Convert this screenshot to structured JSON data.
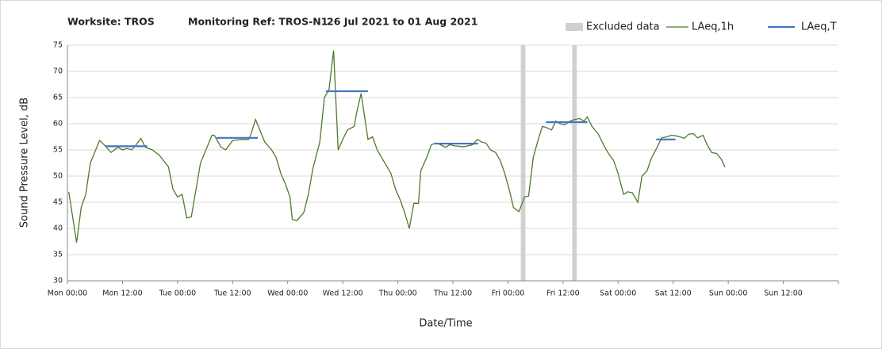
{
  "chart_data": {
    "type": "line",
    "title_parts": [
      "Worksite: TROS",
      "Monitoring Ref: TROS-N1",
      "26 Jul 2021 to 01 Aug 2021"
    ],
    "xlabel": "Date/Time",
    "ylabel": "Sound Pressure Level, dB",
    "xlim": [
      0,
      168
    ],
    "ylim": [
      30,
      75
    ],
    "yticks": [
      30,
      35,
      40,
      45,
      50,
      55,
      60,
      65,
      70,
      75
    ],
    "xticks": [
      {
        "value": 0,
        "label": "Mon 00:00"
      },
      {
        "value": 12,
        "label": "Mon 12:00"
      },
      {
        "value": 24,
        "label": "Tue 00:00"
      },
      {
        "value": 36,
        "label": "Tue 12:00"
      },
      {
        "value": 48,
        "label": "Wed 00:00"
      },
      {
        "value": 60,
        "label": "Wed 12:00"
      },
      {
        "value": 72,
        "label": "Thu 00:00"
      },
      {
        "value": 84,
        "label": "Thu 12:00"
      },
      {
        "value": 96,
        "label": "Fri 00:00"
      },
      {
        "value": 108,
        "label": "Fri 12:00"
      },
      {
        "value": 120,
        "label": "Sat 00:00"
      },
      {
        "value": 132,
        "label": "Sat 12:00"
      },
      {
        "value": 144,
        "label": "Sun 00:00"
      },
      {
        "value": 156,
        "label": "Sun 12:00"
      }
    ],
    "grid": true,
    "excluded": {
      "name": "Excluded data",
      "color": "#d0d0d0",
      "ranges": [
        [
          98.8,
          99.8
        ],
        [
          110,
          111
        ]
      ]
    },
    "series": [
      {
        "name": "LAeq,1h",
        "color": "#4e7a2e",
        "x": [
          0.3,
          2,
          3,
          4,
          5,
          7,
          8,
          9.5,
          11,
          12,
          13,
          14,
          15,
          16,
          17,
          18.5,
          20,
          22,
          23,
          24,
          25,
          26,
          27,
          29,
          31.5,
          32,
          33.5,
          34.5,
          36,
          38,
          39.5,
          40,
          41,
          43,
          44.5,
          45.5,
          46.5,
          47.5,
          48.5,
          49,
          50,
          51.5,
          52.5,
          53.5,
          55,
          56,
          57,
          58,
          59,
          60,
          61,
          62.5,
          63,
          64,
          65.5,
          66.5,
          67.5,
          68.5,
          69.5,
          70.5,
          71.5,
          72.5,
          73.5,
          74.5,
          75.5,
          76.5,
          77,
          78.5,
          79.3,
          80.3,
          81.3,
          82.4,
          83.3,
          84.3,
          86.4,
          88.3,
          89.3,
          90.3,
          91.2,
          92.2,
          93.3,
          94.3,
          95.3,
          96.4,
          97.2,
          98.4,
          99.6,
          100.5,
          101.5,
          102.6,
          103.5,
          104.3,
          105.5,
          106.4,
          107.4,
          108.4,
          109.5,
          110.5,
          111.6,
          112.6,
          113.3,
          114.3,
          115.7,
          117.1,
          118,
          119,
          120,
          121.2,
          122.1,
          123.1,
          124.3,
          125.2,
          126.3,
          127.3,
          128.5,
          129.5,
          130.6,
          131.6,
          132.5,
          133.5,
          134.4,
          135.4,
          136.4,
          137.3,
          138.5,
          139.4,
          140.4,
          141.5,
          142.5,
          143.3
        ],
        "values": [
          47,
          37.3,
          44,
          46.5,
          52.5,
          56.8,
          56,
          54.5,
          55.5,
          55,
          55.3,
          55,
          56,
          57.2,
          55.5,
          55,
          54,
          51.8,
          47.5,
          46,
          46.5,
          42,
          42.2,
          52.5,
          57.8,
          57.8,
          55.5,
          55,
          56.8,
          57,
          57,
          58,
          60.8,
          56.5,
          55,
          53.5,
          50.5,
          48.5,
          46,
          41.7,
          41.5,
          43,
          46.5,
          51.5,
          56.5,
          65,
          66.5,
          74,
          55,
          57,
          58.8,
          59.5,
          62,
          65.8,
          57,
          57.5,
          55,
          53.5,
          52,
          50.5,
          47.5,
          45.5,
          43,
          40,
          44.8,
          44.8,
          51,
          54,
          56,
          56.3,
          56,
          55.5,
          56,
          55.8,
          55.6,
          56,
          57,
          56.5,
          56.3,
          55,
          54.5,
          53,
          50.5,
          47,
          44,
          43.2,
          46,
          46.2,
          53.5,
          57,
          59.5,
          59.3,
          58.8,
          60.5,
          60,
          59.8,
          60.5,
          60.8,
          61,
          60.5,
          61.3,
          59.5,
          58,
          55.5,
          54.2,
          53,
          50.5,
          46.5,
          47,
          46.8,
          45,
          50,
          51,
          53.5,
          55.5,
          57.3,
          57.5,
          57.8,
          57.7,
          57.5,
          57.2,
          58,
          58.1,
          57.3,
          57.8,
          56,
          54.5,
          54.3,
          53.2,
          51.7
        ]
      },
      {
        "name": "LAeq,T",
        "color": "#4472c4",
        "x": [
          8.3,
          17.4,
          25,
          32.5,
          41.5,
          49,
          56.3,
          65.5,
          73,
          80,
          89.5,
          97,
          104.3,
          113.3,
          121,
          128.3,
          132.5
        ],
        "values": [
          55.7,
          55.7,
          null,
          57.3,
          57.3,
          null,
          66.2,
          66.2,
          null,
          56.2,
          56.2,
          null,
          60.3,
          60.3,
          null,
          57,
          57
        ]
      }
    ]
  }
}
